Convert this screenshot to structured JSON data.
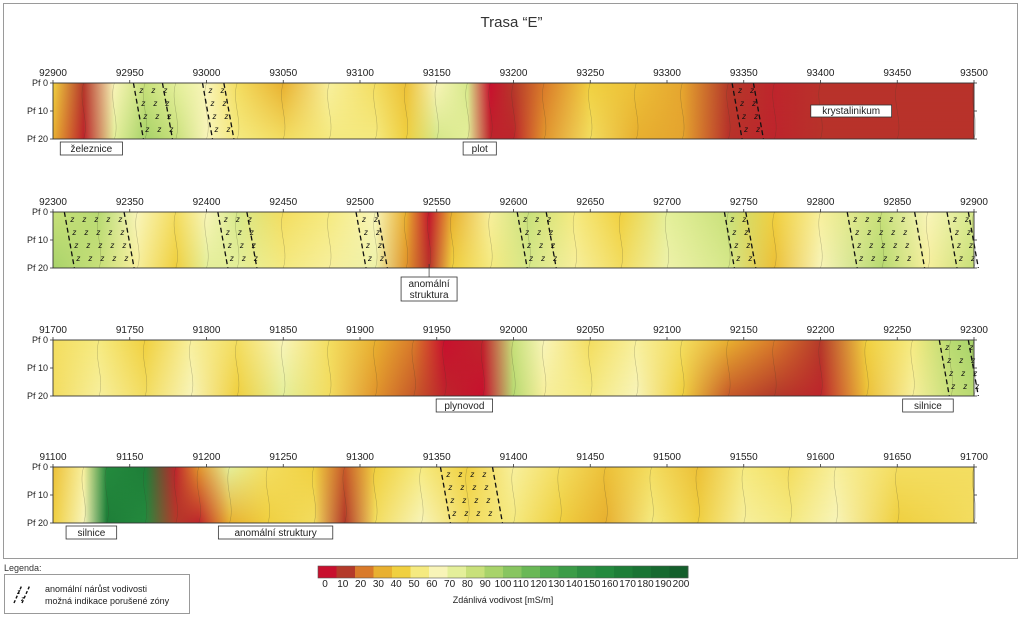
{
  "title": "Trasa “E”",
  "legend": {
    "heading": "Legenda:",
    "line1": "anomální nárůst vodivosti",
    "line2": "možná indikace porušené zóny",
    "symbol_icon": "fault-zone-hatch-icon"
  },
  "colorbar": {
    "label": "Zdánlivá vodivost [mS/m]",
    "ticks": [
      0,
      10,
      20,
      30,
      40,
      50,
      60,
      70,
      80,
      90,
      100,
      110,
      120,
      130,
      140,
      150,
      160,
      170,
      180,
      190,
      200
    ],
    "colors": [
      "#c8102e",
      "#b43a2a",
      "#d97a2a",
      "#e8b030",
      "#f0d040",
      "#f5ea80",
      "#f8f4b8",
      "#e4ef9a",
      "#c8e07a",
      "#a8d36a",
      "#88c560",
      "#6ab856",
      "#50aa4e",
      "#3c9c48",
      "#2e8e42",
      "#248a3e",
      "#1e7e38",
      "#1a7434",
      "#176a30",
      "#145f2c"
    ]
  },
  "chart_data": [
    {
      "type": "heatmap",
      "name": "profile-1",
      "x_ticks": [
        92900,
        92950,
        93000,
        93050,
        93100,
        93150,
        93200,
        93250,
        93300,
        93350,
        93400,
        93450,
        93500
      ],
      "xlim": [
        92900,
        93500
      ],
      "y_ticks": [
        "Pf 0",
        "Pf 10",
        "Pf 20"
      ],
      "ylim": [
        0,
        20
      ],
      "columns": [
        {
          "x": 92900,
          "top": 40,
          "bottom": 30
        },
        {
          "x": 92920,
          "top": 10,
          "bottom": 5
        },
        {
          "x": 92940,
          "top": 60,
          "bottom": 70
        },
        {
          "x": 92960,
          "top": 80,
          "bottom": 90
        },
        {
          "x": 92980,
          "top": 70,
          "bottom": 80
        },
        {
          "x": 93000,
          "top": 60,
          "bottom": 60
        },
        {
          "x": 93020,
          "top": 45,
          "bottom": 50
        },
        {
          "x": 93050,
          "top": 30,
          "bottom": 45
        },
        {
          "x": 93080,
          "top": 55,
          "bottom": 50
        },
        {
          "x": 93110,
          "top": 45,
          "bottom": 50
        },
        {
          "x": 93130,
          "top": 35,
          "bottom": 40
        },
        {
          "x": 93150,
          "top": 60,
          "bottom": 75
        },
        {
          "x": 93170,
          "top": 75,
          "bottom": 70
        },
        {
          "x": 93185,
          "top": 0,
          "bottom": 5
        },
        {
          "x": 93200,
          "top": 10,
          "bottom": 5
        },
        {
          "x": 93220,
          "top": 20,
          "bottom": 25
        },
        {
          "x": 93250,
          "top": 40,
          "bottom": 45
        },
        {
          "x": 93280,
          "top": 35,
          "bottom": 30
        },
        {
          "x": 93310,
          "top": 28,
          "bottom": 28
        },
        {
          "x": 93340,
          "top": 10,
          "bottom": 8
        },
        {
          "x": 93370,
          "top": 5,
          "bottom": 5
        },
        {
          "x": 93400,
          "top": 8,
          "bottom": 8
        },
        {
          "x": 93450,
          "top": 8,
          "bottom": 8
        },
        {
          "x": 93500,
          "top": 8,
          "bottom": 8
        }
      ],
      "zones": [
        [
          92955,
          92970
        ],
        [
          93000,
          93010
        ],
        [
          93345,
          93355
        ]
      ],
      "annotations": [
        {
          "text": "železnice",
          "x": 92925,
          "pos": "below"
        },
        {
          "text": "plot",
          "x": 93178,
          "pos": "below"
        },
        {
          "text": "krystalinikum",
          "x": 93420,
          "pos": "inside"
        }
      ]
    },
    {
      "type": "heatmap",
      "name": "profile-2",
      "x_ticks": [
        92300,
        92350,
        92400,
        92450,
        92500,
        92550,
        92600,
        92650,
        92700,
        92750,
        92800,
        92850,
        92900
      ],
      "xlim": [
        92300,
        92900
      ],
      "y_ticks": [
        "Pf 0",
        "Pf 10",
        "Pf 20"
      ],
      "ylim": [
        0,
        20
      ],
      "columns": [
        {
          "x": 92300,
          "top": 80,
          "bottom": 90
        },
        {
          "x": 92330,
          "top": 85,
          "bottom": 80
        },
        {
          "x": 92355,
          "top": 60,
          "bottom": 55
        },
        {
          "x": 92380,
          "top": 45,
          "bottom": 40
        },
        {
          "x": 92400,
          "top": 60,
          "bottom": 70
        },
        {
          "x": 92420,
          "top": 75,
          "bottom": 70
        },
        {
          "x": 92450,
          "top": 45,
          "bottom": 50
        },
        {
          "x": 92480,
          "top": 50,
          "bottom": 55
        },
        {
          "x": 92510,
          "top": 60,
          "bottom": 65
        },
        {
          "x": 92530,
          "top": 30,
          "bottom": 25
        },
        {
          "x": 92545,
          "top": 2,
          "bottom": 8
        },
        {
          "x": 92560,
          "top": 30,
          "bottom": 40
        },
        {
          "x": 92585,
          "top": 55,
          "bottom": 50
        },
        {
          "x": 92610,
          "top": 80,
          "bottom": 75
        },
        {
          "x": 92640,
          "top": 50,
          "bottom": 55
        },
        {
          "x": 92670,
          "top": 40,
          "bottom": 45
        },
        {
          "x": 92700,
          "top": 70,
          "bottom": 65
        },
        {
          "x": 92740,
          "top": 80,
          "bottom": 75
        },
        {
          "x": 92770,
          "top": 40,
          "bottom": 35
        },
        {
          "x": 92800,
          "top": 55,
          "bottom": 60
        },
        {
          "x": 92840,
          "top": 80,
          "bottom": 85
        },
        {
          "x": 92870,
          "top": 60,
          "bottom": 55
        },
        {
          "x": 92900,
          "top": 75,
          "bottom": 80
        }
      ],
      "zones": [
        [
          92310,
          92345
        ],
        [
          92410,
          92425
        ],
        [
          92500,
          92510
        ],
        [
          92605,
          92620
        ],
        [
          92740,
          92750
        ],
        [
          92820,
          92860
        ],
        [
          92885,
          92895
        ]
      ],
      "annotations": [
        {
          "text": "anomální struktura",
          "x": 92545,
          "pos": "below-two-line"
        }
      ]
    },
    {
      "type": "heatmap",
      "name": "profile-3",
      "x_ticks": [
        91700,
        91750,
        91800,
        91850,
        91900,
        91950,
        92000,
        92050,
        92100,
        92150,
        92200,
        92250,
        92300
      ],
      "xlim": [
        91700,
        92300
      ],
      "y_ticks": [
        "Pf 0",
        "Pf 10",
        "Pf 20"
      ],
      "ylim": [
        0,
        20
      ],
      "columns": [
        {
          "x": 91700,
          "top": 45,
          "bottom": 45
        },
        {
          "x": 91730,
          "top": 50,
          "bottom": 55
        },
        {
          "x": 91760,
          "top": 40,
          "bottom": 45
        },
        {
          "x": 91790,
          "top": 55,
          "bottom": 60
        },
        {
          "x": 91820,
          "top": 45,
          "bottom": 40
        },
        {
          "x": 91850,
          "top": 60,
          "bottom": 70
        },
        {
          "x": 91880,
          "top": 45,
          "bottom": 45
        },
        {
          "x": 91910,
          "top": 30,
          "bottom": 25
        },
        {
          "x": 91935,
          "top": 20,
          "bottom": 15
        },
        {
          "x": 91955,
          "top": 0,
          "bottom": 5
        },
        {
          "x": 91980,
          "top": 5,
          "bottom": 0
        },
        {
          "x": 92000,
          "top": 80,
          "bottom": 85
        },
        {
          "x": 92020,
          "top": 60,
          "bottom": 55
        },
        {
          "x": 92050,
          "top": 45,
          "bottom": 50
        },
        {
          "x": 92080,
          "top": 55,
          "bottom": 60
        },
        {
          "x": 92110,
          "top": 45,
          "bottom": 40
        },
        {
          "x": 92140,
          "top": 30,
          "bottom": 15
        },
        {
          "x": 92170,
          "top": 20,
          "bottom": 10
        },
        {
          "x": 92200,
          "top": 10,
          "bottom": 5
        },
        {
          "x": 92230,
          "top": 40,
          "bottom": 35
        },
        {
          "x": 92260,
          "top": 50,
          "bottom": 55
        },
        {
          "x": 92285,
          "top": 85,
          "bottom": 80
        },
        {
          "x": 92300,
          "top": 90,
          "bottom": 85
        }
      ],
      "zones": [
        [
          92280,
          92295
        ]
      ],
      "annotations": [
        {
          "text": "plynovod",
          "x": 91968,
          "pos": "below"
        },
        {
          "text": "silnice",
          "x": 92270,
          "pos": "below"
        }
      ]
    },
    {
      "type": "heatmap",
      "name": "profile-4",
      "x_ticks": [
        91100,
        91150,
        91200,
        91250,
        91300,
        91350,
        91400,
        91450,
        91500,
        91550,
        91600,
        91650,
        91700
      ],
      "xlim": [
        91100,
        91700
      ],
      "y_ticks": [
        "Pf 0",
        "Pf 10",
        "Pf 20"
      ],
      "ylim": [
        0,
        20
      ],
      "columns": [
        {
          "x": 91100,
          "top": 35,
          "bottom": 40
        },
        {
          "x": 91120,
          "top": 55,
          "bottom": 60
        },
        {
          "x": 91135,
          "top": 150,
          "bottom": 160
        },
        {
          "x": 91160,
          "top": 160,
          "bottom": 150
        },
        {
          "x": 91180,
          "top": 5,
          "bottom": 10
        },
        {
          "x": 91195,
          "top": 25,
          "bottom": 5
        },
        {
          "x": 91215,
          "top": 70,
          "bottom": 30
        },
        {
          "x": 91240,
          "top": 45,
          "bottom": 40
        },
        {
          "x": 91270,
          "top": 40,
          "bottom": 45
        },
        {
          "x": 91290,
          "top": 15,
          "bottom": 10
        },
        {
          "x": 91310,
          "top": 40,
          "bottom": 45
        },
        {
          "x": 91340,
          "top": 50,
          "bottom": 60
        },
        {
          "x": 91370,
          "top": 40,
          "bottom": 45
        },
        {
          "x": 91400,
          "top": 55,
          "bottom": 50
        },
        {
          "x": 91430,
          "top": 45,
          "bottom": 40
        },
        {
          "x": 91460,
          "top": 35,
          "bottom": 30
        },
        {
          "x": 91490,
          "top": 45,
          "bottom": 50
        },
        {
          "x": 91520,
          "top": 35,
          "bottom": 40
        },
        {
          "x": 91550,
          "top": 50,
          "bottom": 55
        },
        {
          "x": 91580,
          "top": 45,
          "bottom": 50
        },
        {
          "x": 91610,
          "top": 55,
          "bottom": 60
        },
        {
          "x": 91650,
          "top": 45,
          "bottom": 40
        },
        {
          "x": 91700,
          "top": 45,
          "bottom": 45
        }
      ],
      "zones": [
        [
          91355,
          91385
        ]
      ],
      "annotations": [
        {
          "text": "silnice",
          "x": 91125,
          "pos": "below"
        },
        {
          "text": "anomální struktury",
          "x": 91245,
          "pos": "below"
        }
      ]
    }
  ]
}
